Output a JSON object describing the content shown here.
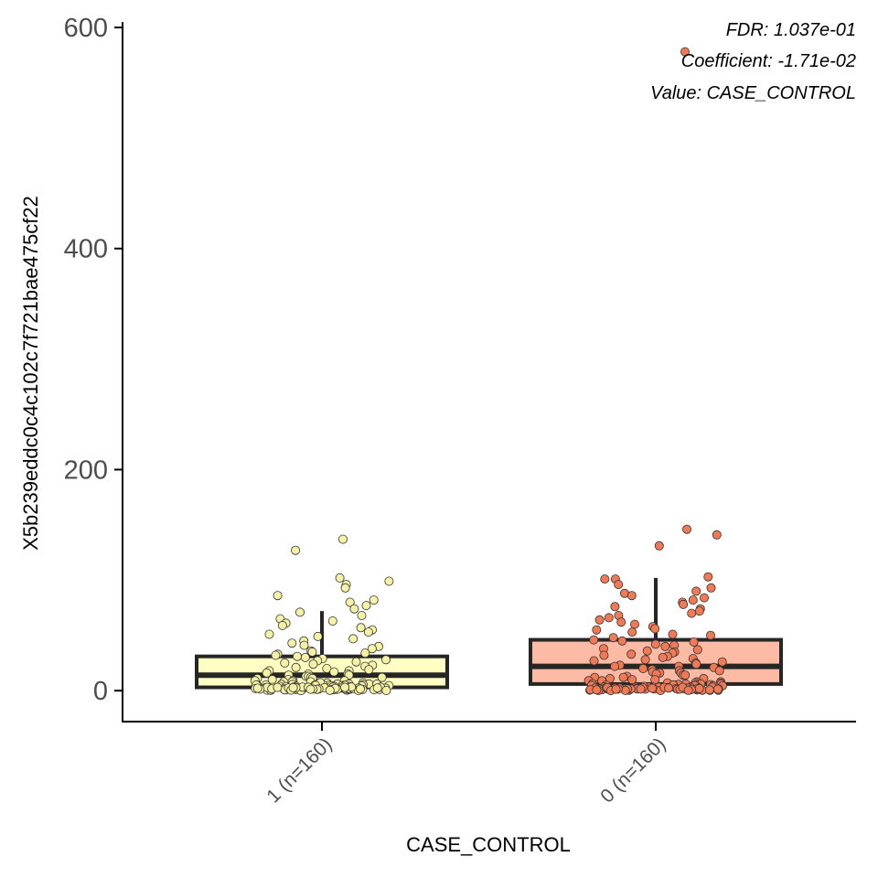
{
  "chart_data": {
    "type": "boxplot",
    "xlabel": "CASE_CONTROL",
    "ylabel": "X5b239eddc0c4c102c7f721bae475cf22",
    "ylim": [
      -28,
      605
    ],
    "yticks": [
      0,
      200,
      400,
      600
    ],
    "grid": false,
    "annotations": [
      "FDR: 1.037e-01",
      "Coefficient: -1.71e-02",
      "Value: CASE_CONTROL"
    ],
    "groups": [
      {
        "label": "1 (n=160)",
        "fill": "#ffffc4",
        "point_color": "#f5f2a6",
        "box": {
          "whisker_low": 0,
          "q1": 3,
          "median": 14,
          "q3": 31,
          "whisker_high": 72
        },
        "points": [
          137,
          127,
          102,
          99,
          96,
          93,
          86,
          82,
          80,
          77,
          74,
          71,
          68,
          65,
          63,
          61,
          59,
          57,
          55,
          53,
          51,
          49,
          47,
          45,
          43,
          41,
          40,
          38,
          36,
          35,
          34,
          33,
          32,
          31,
          30,
          29,
          28,
          27,
          26,
          25,
          24,
          23,
          22,
          21,
          20,
          19,
          18,
          18,
          17,
          16,
          15,
          15,
          14,
          14,
          13,
          13,
          12,
          12,
          11,
          11,
          10,
          10,
          9,
          9,
          9,
          8,
          8,
          8,
          7,
          7,
          7,
          6,
          6,
          6,
          5,
          5,
          5,
          5,
          4,
          4,
          4,
          4,
          3,
          3,
          3,
          3,
          3,
          2,
          2,
          2,
          2,
          2,
          2,
          1,
          1,
          1,
          1,
          1,
          1,
          1,
          1,
          0,
          0,
          0,
          0,
          0,
          0,
          0,
          0,
          0,
          0,
          0,
          0,
          0,
          0,
          0,
          0,
          0,
          0,
          0,
          0,
          0,
          0,
          0,
          0,
          0,
          0,
          0,
          0,
          0,
          0,
          0,
          0,
          0,
          0,
          0,
          0,
          0,
          0,
          0,
          0,
          0,
          0,
          0,
          0,
          0,
          0,
          0,
          0,
          0,
          0,
          0,
          0,
          0,
          0,
          0,
          0,
          0,
          0,
          0
        ]
      },
      {
        "label": "0 (n=160)",
        "fill": "#fdbba5",
        "point_color": "#f07a55",
        "box": {
          "whisker_low": 0,
          "q1": 6,
          "median": 22,
          "q3": 46,
          "whisker_high": 102
        },
        "points": [
          578,
          146,
          141,
          131,
          103,
          101,
          101,
          96,
          93,
          90,
          88,
          86,
          84,
          82,
          80,
          78,
          76,
          74,
          72,
          70,
          68,
          66,
          64,
          62,
          60,
          58,
          56,
          55,
          53,
          51,
          50,
          48,
          46,
          45,
          44,
          42,
          41,
          40,
          38,
          37,
          36,
          35,
          34,
          33,
          32,
          31,
          30,
          29,
          28,
          27,
          26,
          25,
          24,
          23,
          22,
          22,
          21,
          20,
          19,
          18,
          18,
          17,
          16,
          16,
          15,
          14,
          14,
          13,
          12,
          12,
          11,
          11,
          10,
          10,
          9,
          9,
          8,
          8,
          7,
          7,
          7,
          6,
          6,
          6,
          5,
          5,
          5,
          4,
          4,
          4,
          4,
          3,
          3,
          3,
          3,
          2,
          2,
          2,
          2,
          2,
          1,
          1,
          1,
          1,
          1,
          1,
          1,
          0,
          0,
          0,
          0,
          0,
          0,
          0,
          0,
          0,
          0,
          0,
          0,
          0,
          0,
          0,
          0,
          0,
          0,
          0,
          0,
          0,
          0,
          0,
          0,
          0,
          0,
          0,
          0,
          0,
          0,
          0,
          0,
          0,
          0,
          0,
          0,
          0,
          0,
          0,
          0,
          0,
          0,
          0,
          0,
          0,
          0,
          0,
          0,
          0,
          0,
          0,
          0,
          0
        ]
      }
    ]
  }
}
